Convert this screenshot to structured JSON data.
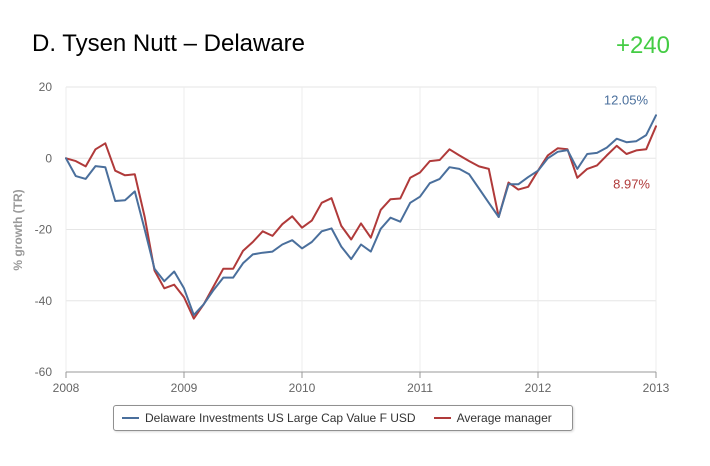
{
  "header": {
    "title": "D. Tysen Nutt – Delaware",
    "badge": "+240",
    "badge_color": "#44cc44"
  },
  "chart_data": {
    "type": "line",
    "title": "D. Tysen Nutt – Delaware",
    "ylabel": "% growth (TR)",
    "xlabel": "",
    "xlim": [
      2008,
      2013
    ],
    "ylim": [
      -60,
      20
    ],
    "xticks": [
      2008,
      2009,
      2010,
      2011,
      2012,
      2013
    ],
    "yticks": [
      20,
      0,
      -20,
      -40,
      -60
    ],
    "grid": true,
    "legend_position": "bottom",
    "series": [
      {
        "name": "Delaware Investments US Large Cap Value F USD",
        "color": "#4a6f9c",
        "end_label": "12.05%",
        "x": [
          2008.0,
          2008.0833,
          2008.1667,
          2008.25,
          2008.3333,
          2008.4167,
          2008.5,
          2008.5833,
          2008.6667,
          2008.75,
          2008.8333,
          2008.9167,
          2009.0,
          2009.0833,
          2009.1667,
          2009.25,
          2009.3333,
          2009.4167,
          2009.5,
          2009.5833,
          2009.6667,
          2009.75,
          2009.8333,
          2009.9167,
          2010.0,
          2010.0833,
          2010.1667,
          2010.25,
          2010.3333,
          2010.4167,
          2010.5,
          2010.5833,
          2010.6667,
          2010.75,
          2010.8333,
          2010.9167,
          2011.0,
          2011.0833,
          2011.1667,
          2011.25,
          2011.3333,
          2011.4167,
          2011.5,
          2011.5833,
          2011.6667,
          2011.75,
          2011.8333,
          2011.9167,
          2012.0,
          2012.0833,
          2012.1667,
          2012.25,
          2012.3333,
          2012.4167,
          2012.5,
          2012.5833,
          2012.6667,
          2012.75,
          2012.8333,
          2012.9167,
          2013.0
        ],
        "values": [
          0,
          -5,
          -5.8,
          -2.2,
          -2.5,
          -12,
          -11.8,
          -9.3,
          -20,
          -31,
          -34.5,
          -31.8,
          -36.5,
          -44,
          -41,
          -37,
          -33.5,
          -33.5,
          -29.5,
          -27,
          -26.5,
          -26.2,
          -24.2,
          -23,
          -25.3,
          -23.5,
          -20.5,
          -19.7,
          -24.8,
          -28.3,
          -24.2,
          -26.2,
          -19.8,
          -16.7,
          -17.8,
          -12.5,
          -10.8,
          -7,
          -5.8,
          -2.5,
          -3,
          -4.5,
          -8.5,
          -12.5,
          -16.5,
          -7.3,
          -7.3,
          -5.3,
          -3.5,
          0,
          1.8,
          2.3,
          -3,
          1.2,
          1.5,
          3,
          5.5,
          4.5,
          4.8,
          6.5,
          12.05
        ]
      },
      {
        "name": "Average manager",
        "color": "#b03a3a",
        "end_label": "8.97%",
        "x": [
          2008.0,
          2008.0833,
          2008.1667,
          2008.25,
          2008.3333,
          2008.4167,
          2008.5,
          2008.5833,
          2008.6667,
          2008.75,
          2008.8333,
          2008.9167,
          2009.0,
          2009.0833,
          2009.1667,
          2009.25,
          2009.3333,
          2009.4167,
          2009.5,
          2009.5833,
          2009.6667,
          2009.75,
          2009.8333,
          2009.9167,
          2010.0,
          2010.0833,
          2010.1667,
          2010.25,
          2010.3333,
          2010.4167,
          2010.5,
          2010.5833,
          2010.6667,
          2010.75,
          2010.8333,
          2010.9167,
          2011.0,
          2011.0833,
          2011.1667,
          2011.25,
          2011.3333,
          2011.4167,
          2011.5,
          2011.5833,
          2011.6667,
          2011.75,
          2011.8333,
          2011.9167,
          2012.0,
          2012.0833,
          2012.1667,
          2012.25,
          2012.3333,
          2012.4167,
          2012.5,
          2012.5833,
          2012.6667,
          2012.75,
          2012.8333,
          2012.9167,
          2013.0
        ],
        "values": [
          0,
          -0.8,
          -2.3,
          2.5,
          4.2,
          -3.5,
          -4.8,
          -4.5,
          -16.5,
          -31.5,
          -36.5,
          -35.5,
          -39,
          -45,
          -41,
          -36,
          -31,
          -31,
          -26,
          -23.5,
          -20.5,
          -21.8,
          -18.5,
          -16.3,
          -19.5,
          -17.5,
          -12.5,
          -11.2,
          -19,
          -22.8,
          -18.3,
          -22.3,
          -14.5,
          -11.5,
          -11.3,
          -5.5,
          -4,
          -0.8,
          -0.5,
          2.5,
          0.8,
          -0.8,
          -2.3,
          -3,
          -16.5,
          -6.8,
          -8.8,
          -8,
          -3.5,
          0.8,
          2.8,
          2.5,
          -5.5,
          -3,
          -2,
          0.8,
          3.5,
          1.2,
          2.2,
          2.5,
          8.97
        ]
      }
    ]
  }
}
